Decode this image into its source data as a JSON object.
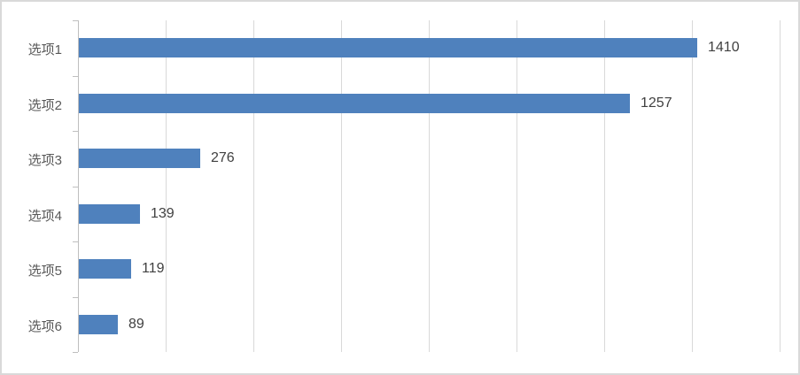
{
  "chart_data": {
    "type": "bar",
    "orientation": "horizontal",
    "title": "",
    "xlabel": "",
    "ylabel": "",
    "categories": [
      "选项1",
      "选项2",
      "选项3",
      "选项4",
      "选项5",
      "选项6"
    ],
    "values": [
      1410,
      1257,
      276,
      139,
      119,
      89
    ],
    "data_labels": [
      "1410",
      "1257",
      "276",
      "139",
      "119",
      "89"
    ],
    "xlim": [
      0,
      1600
    ],
    "gridline_interval": 200,
    "grid": "vertical-gridlines-on",
    "axis_value_tick_labels_visible": false,
    "legend_position": "none"
  },
  "colors": {
    "bar": "#4F81BD",
    "gridline": "#D9D9D9",
    "axis": "#BFBFBF",
    "category_label": "#595959",
    "value_label": "#404040",
    "frame_border": "#D9D9D9",
    "background": "#FFFFFF"
  }
}
